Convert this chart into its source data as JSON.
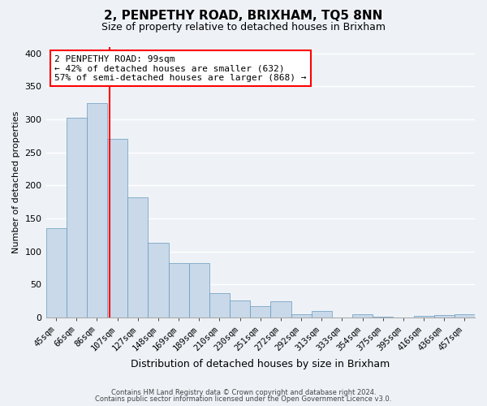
{
  "title": "2, PENPETHY ROAD, BRIXHAM, TQ5 8NN",
  "subtitle": "Size of property relative to detached houses in Brixham",
  "xlabel": "Distribution of detached houses by size in Brixham",
  "ylabel": "Number of detached properties",
  "categories": [
    "45sqm",
    "66sqm",
    "86sqm",
    "107sqm",
    "127sqm",
    "148sqm",
    "169sqm",
    "189sqm",
    "210sqm",
    "230sqm",
    "251sqm",
    "272sqm",
    "292sqm",
    "313sqm",
    "333sqm",
    "354sqm",
    "375sqm",
    "395sqm",
    "416sqm",
    "436sqm",
    "457sqm"
  ],
  "values": [
    135,
    302,
    325,
    270,
    182,
    113,
    83,
    83,
    37,
    26,
    17,
    25,
    5,
    10,
    0,
    5,
    1,
    0,
    3,
    4,
    5
  ],
  "bar_color": "#c9d9ea",
  "bar_edge_color": "#6699bb",
  "annotation_text": "2 PENPETHY ROAD: 99sqm\n← 42% of detached houses are smaller (632)\n57% of semi-detached houses are larger (868) →",
  "annotation_box_color": "white",
  "annotation_box_edge_color": "red",
  "ylim": [
    0,
    410
  ],
  "footer1": "Contains HM Land Registry data © Crown copyright and database right 2024.",
  "footer2": "Contains public sector information licensed under the Open Government Licence v3.0.",
  "background_color": "#eef2f7",
  "grid_color": "white"
}
